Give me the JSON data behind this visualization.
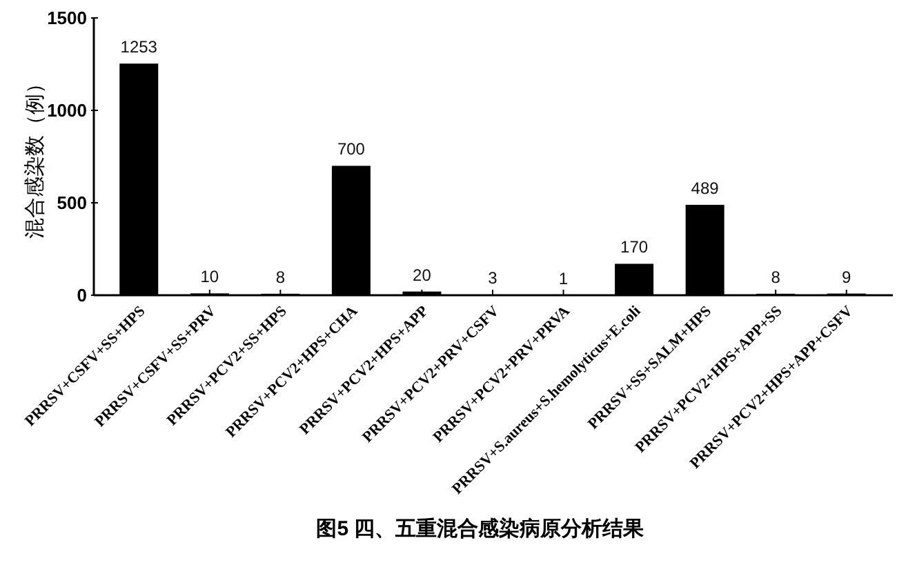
{
  "chart_data": {
    "type": "bar",
    "title": "图5 四、五重混合感染病原分析结果",
    "ylabel": "混合感染数（例）",
    "categories": [
      "PRRSV+CSFV+SS+HPS",
      "PRRSV+CSFV+SS+PRV",
      "PRRSV+PCV2+SS+HPS",
      "PRRSV+PCV2+HPS+CHA",
      "PRRSV+PCV2+HPS+APP",
      "PRRSV+PCV2+PRV+CSFV",
      "PRRSV+PCV2+PRV+PRVA",
      "PRRSV+S.aureus+S.hemolyticus+E.coli",
      "PRRSV+SS+SALM+HPS",
      "PRRSV+PCV2+HPS+APP+SS",
      "PRRSV+PCV2+HPS+APP+CSFV"
    ],
    "values": [
      1253,
      10,
      8,
      700,
      20,
      3,
      1,
      170,
      489,
      8,
      9
    ],
    "color": "#000000",
    "ylim": [
      0,
      1500
    ],
    "yticks": [
      0,
      500,
      1000,
      1500
    ],
    "data_labels": true
  }
}
